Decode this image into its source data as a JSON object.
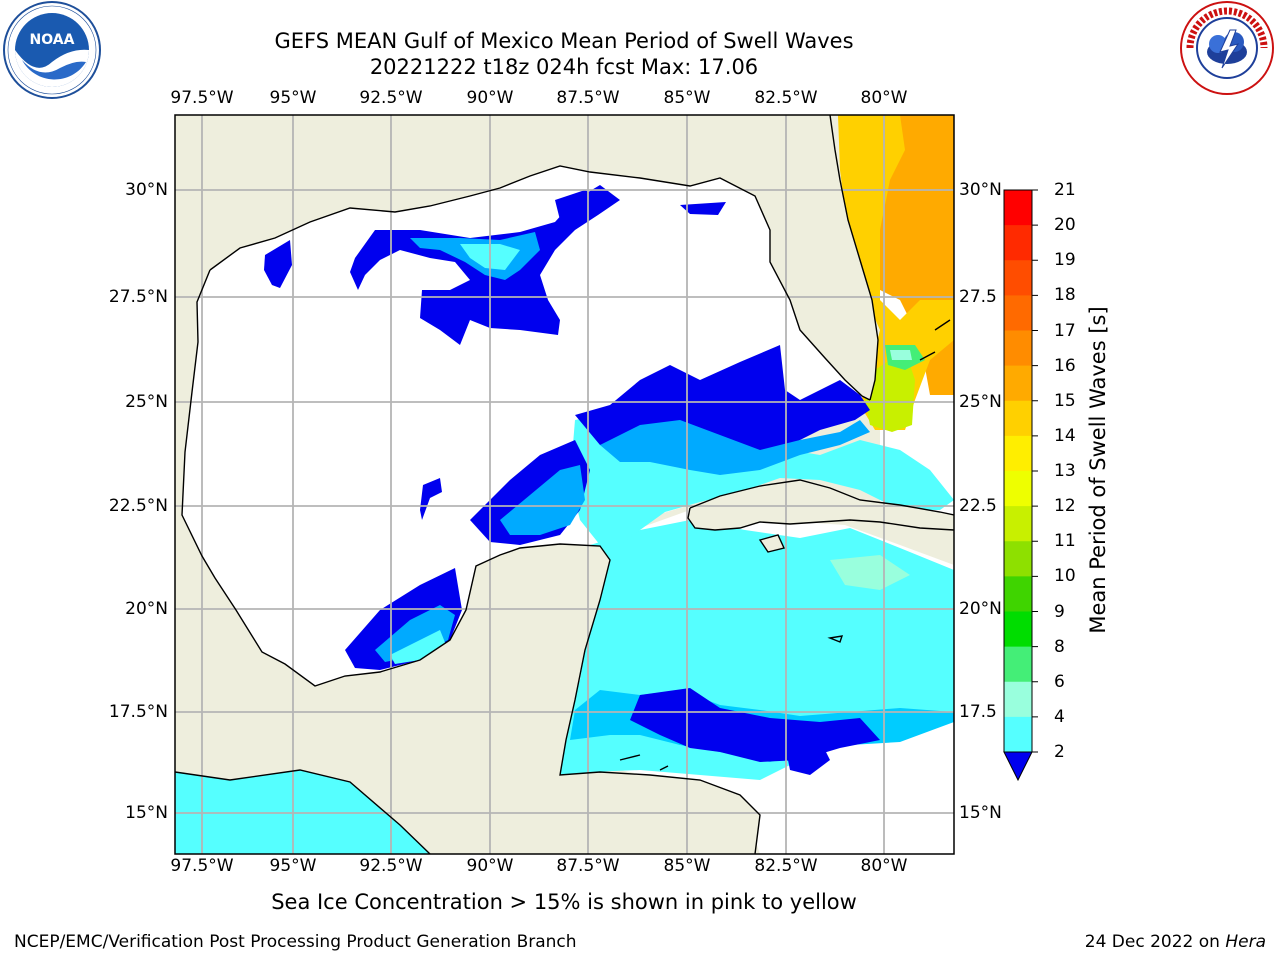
{
  "title": {
    "line1": "GEFS MEAN Gulf of Mexico Mean Period of Swell Waves",
    "line2": "20221222 t18z 024h fcst   Max: 17.06"
  },
  "logos": {
    "noaa_text": "NOAA",
    "nws_text": "NATIONAL WEATHER SERVICE"
  },
  "map": {
    "lon_labels": [
      "97.5°W",
      "95°W",
      "92.5°W",
      "90°W",
      "87.5°W",
      "85°W",
      "82.5°W",
      "80°W"
    ],
    "lat_labels_left": [
      "30°N",
      "27.5°N",
      "25°N",
      "22.5°N",
      "20°N",
      "17.5°N",
      "15°N"
    ],
    "lat_labels_right": [
      "30°N",
      "27.5",
      "25°N",
      "22.5",
      "20°N",
      "17.5",
      "15°N"
    ],
    "colors": {
      "land": "#eeeedd",
      "ocean_mask": "#ffffff",
      "grid": "#b5b5b5",
      "coast": "#000000"
    }
  },
  "colorbar": {
    "title": "Mean Period of Swell Waves [s]",
    "tick_labels": [
      "21",
      "20",
      "19",
      "18",
      "17",
      "16",
      "15",
      "14",
      "13",
      "12",
      "11",
      "10",
      "9",
      "8",
      "6",
      "4",
      "2"
    ],
    "colors": [
      "#ff0000",
      "#ff2a00",
      "#ff4d00",
      "#ff6a00",
      "#ff8c00",
      "#ffaa00",
      "#ffd000",
      "#ffee00",
      "#eeff00",
      "#c8f000",
      "#8ee000",
      "#3fd400",
      "#00dd00",
      "#44ee77",
      "#99ffdd",
      "#55ffff",
      "#00eeff",
      "#00aaff",
      "#0055ff",
      "#0000ee"
    ]
  },
  "caption": "Sea Ice Concentration > 15% is shown in pink to yellow",
  "footer": {
    "left": "NCEP/EMC/Verification Post Processing Product Generation Branch",
    "right_prefix": "24 Dec 2022 on ",
    "right_machine": "Hera"
  }
}
